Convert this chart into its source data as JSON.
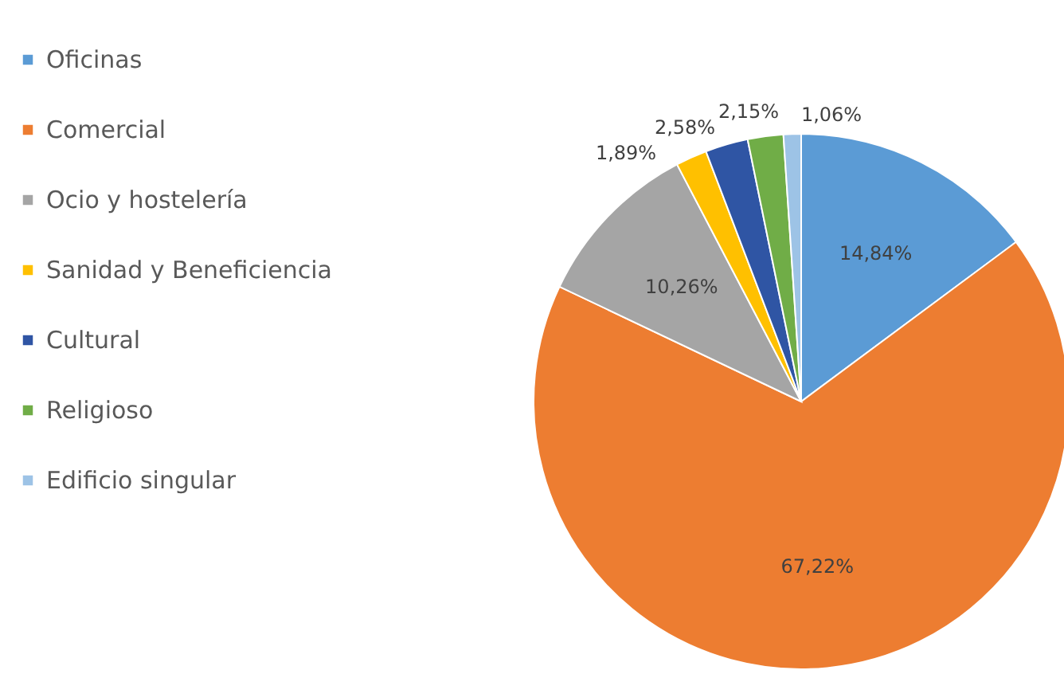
{
  "chart_data": {
    "type": "pie",
    "categories": [
      "Oficinas",
      "Comercial",
      "Ocio y hostelería",
      "Sanidad y Beneficiencia",
      "Cultural",
      "Religioso",
      "Edificio singular"
    ],
    "values": [
      14.84,
      67.22,
      10.26,
      1.89,
      2.58,
      2.15,
      1.06
    ],
    "colors": [
      "#5b9bd5",
      "#ed7d31",
      "#a5a5a5",
      "#ffc000",
      "#2f55a4",
      "#70ad47",
      "#9dc3e6"
    ],
    "value_labels": [
      "14,84%",
      "67,22%",
      "10,26%",
      "1,89%",
      "2,58%",
      "2,15%",
      "1,06%"
    ],
    "legend": "left"
  }
}
